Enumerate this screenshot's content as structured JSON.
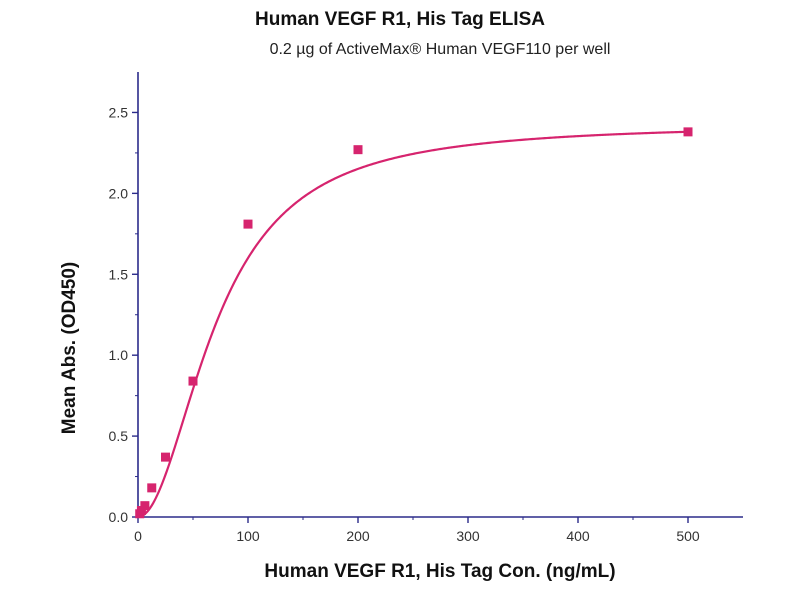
{
  "chart_data": {
    "type": "scatter",
    "title": "Human VEGF R1, His Tag ELISA",
    "subtitle": "0.2 µg of ActiveMax® Human VEGF110 per well",
    "xlabel": "Human VEGF R1, His Tag Con. (ng/mL)",
    "ylabel": "Mean Abs. (OD450)",
    "xlim": [
      0,
      550
    ],
    "ylim": [
      0,
      2.75
    ],
    "x_ticks": [
      0,
      100,
      200,
      300,
      400,
      500
    ],
    "x_tick_labels": [
      "0",
      "100",
      "200",
      "300",
      "400",
      "500"
    ],
    "y_ticks": [
      0,
      0.5,
      1.0,
      1.5,
      2.0,
      2.5
    ],
    "y_tick_labels": [
      "0.0",
      "0.5",
      "1.0",
      "1.5",
      "2.0",
      "2.5"
    ],
    "grid": false,
    "series": [
      {
        "x": [
          1.5625,
          3.125,
          6.25,
          12.5,
          25,
          50,
          100,
          200,
          500
        ],
        "y": [
          0.02,
          0.04,
          0.07,
          0.18,
          0.37,
          0.84,
          1.81,
          2.27,
          2.38
        ],
        "fit": "four-parameter logistic curve"
      }
    ],
    "colors": {
      "marker": "#d6246e",
      "curve": "#d6246e",
      "axis": "#2b2b8a"
    }
  }
}
